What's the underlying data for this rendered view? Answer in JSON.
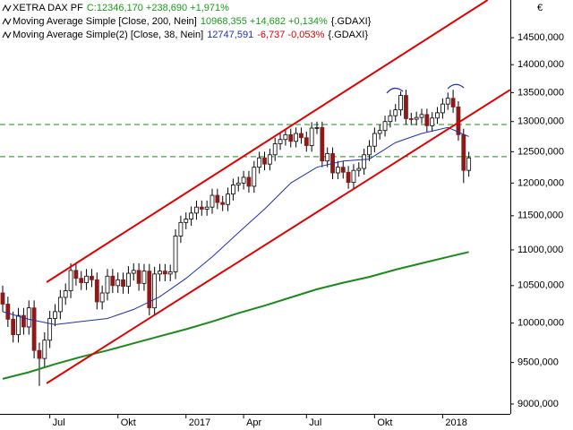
{
  "chart_data": {
    "type": "candlestick",
    "legend": [
      [
        {
          "text": "XETRA DAX PF",
          "color": "#000000"
        },
        {
          "text": "C:12346,170 +238,690 +1,971%",
          "color": "#1a9a1a"
        }
      ],
      [
        {
          "text": "Moving Average Simple [Close, 200, Nein]",
          "color": "#000000"
        },
        {
          "text": "10968,355 +14,682 +0,134%",
          "color": "#1a9a1a"
        },
        {
          "text": "{.GDAXI}",
          "color": "#000000"
        }
      ],
      [
        {
          "text": "Moving Average Simple(2) [Close, 38, Nein]",
          "color": "#000000"
        },
        {
          "text": "12747,591",
          "color": "#1f2fb0"
        },
        {
          "text": "-6,737 -0,053%",
          "color": "#e00000"
        },
        {
          "text": "{.GDAXI}",
          "color": "#000000"
        }
      ]
    ],
    "currency": "€",
    "log_scale": true,
    "ylim": [
      8885,
      15230
    ],
    "yticks": [
      {
        "value": 9000,
        "label": "9000,000"
      },
      {
        "value": 9500,
        "label": "9500,000"
      },
      {
        "value": 10000,
        "label": "10000,000"
      },
      {
        "value": 10500,
        "label": "10500,000"
      },
      {
        "value": 11000,
        "label": "11000,000"
      },
      {
        "value": 11500,
        "label": "11500,000"
      },
      {
        "value": 12000,
        "label": "12000,000"
      },
      {
        "value": 12500,
        "label": "12500,000"
      },
      {
        "value": 13000,
        "label": "13000,000"
      },
      {
        "value": 13500,
        "label": "13500,000"
      },
      {
        "value": 14000,
        "label": "14000,000"
      },
      {
        "value": 14500,
        "label": "14500,000"
      }
    ],
    "categories": [
      null,
      null,
      null,
      null,
      null,
      null,
      null,
      null,
      null,
      "Jul",
      null,
      null,
      null,
      null,
      null,
      null,
      null,
      null,
      null,
      null,
      null,
      null,
      "Okt",
      null,
      null,
      null,
      null,
      null,
      null,
      null,
      null,
      null,
      null,
      null,
      null,
      "2017",
      null,
      null,
      null,
      null,
      null,
      null,
      null,
      null,
      null,
      null,
      "Apr",
      null,
      null,
      null,
      null,
      null,
      null,
      null,
      null,
      null,
      null,
      null,
      "Jul",
      null,
      null,
      null,
      null,
      null,
      null,
      null,
      null,
      null,
      null,
      null,
      null,
      "Okt",
      null,
      null,
      null,
      null,
      null,
      null,
      null,
      null,
      null,
      null,
      null,
      null,
      "2018",
      null,
      null,
      null,
      null,
      null
    ],
    "up_color": "#ffffff",
    "down_color": "#8b1a1a",
    "edge_color": "#000000",
    "open": [
      10400,
      10250,
      10050,
      9850,
      10100,
      9950,
      10200,
      9650,
      9550,
      9780,
      10060,
      10150,
      10340,
      10430,
      10710,
      10600,
      10540,
      10630,
      10580,
      10280,
      10400,
      10630,
      10500,
      10580,
      10490,
      10670,
      10710,
      10530,
      10700,
      10200,
      10660,
      10700,
      10660,
      10690,
      11200,
      11400,
      11450,
      11540,
      11630,
      11600,
      11630,
      11810,
      11700,
      11670,
      11830,
      11970,
      12000,
      12090,
      11950,
      12250,
      12400,
      12300,
      12450,
      12630,
      12700,
      12780,
      12670,
      12800,
      12730,
      12600,
      12890,
      12900,
      12350,
      12470,
      12160,
      12250,
      12170,
      12010,
      12200,
      12230,
      12450,
      12590,
      12800,
      12850,
      13000,
      13100,
      13200,
      13450,
      13050,
      13040,
      13070,
      13120,
      12930,
      13060,
      13150,
      13300,
      13400,
      13250,
      12780,
      12200
    ],
    "high": [
      10500,
      10350,
      10150,
      10200,
      10200,
      10300,
      10300,
      9750,
      9880,
      10160,
      10250,
      10440,
      10530,
      10810,
      10810,
      10700,
      10730,
      10730,
      10680,
      10500,
      10730,
      10730,
      10680,
      10680,
      10770,
      10810,
      10810,
      10800,
      10800,
      10760,
      10800,
      10800,
      10790,
      11300,
      11500,
      11550,
      11640,
      11730,
      11730,
      11730,
      11910,
      11910,
      11800,
      11930,
      12070,
      12100,
      12190,
      12190,
      12350,
      12500,
      12500,
      12550,
      12730,
      12800,
      12880,
      12880,
      12900,
      12900,
      12830,
      12990,
      13000,
      13000,
      12570,
      12570,
      12350,
      12350,
      12270,
      12300,
      12330,
      12550,
      12690,
      12900,
      12950,
      13100,
      13200,
      13300,
      13520,
      13550,
      13150,
      13170,
      13220,
      13220,
      13160,
      13250,
      13400,
      13500,
      13550,
      13350,
      12880,
      12500
    ],
    "low": [
      10150,
      9950,
      9750,
      9750,
      9850,
      9850,
      9550,
      9214,
      9450,
      9680,
      9960,
      10050,
      10240,
      10330,
      10500,
      10440,
      10440,
      10480,
      10180,
      10180,
      10300,
      10400,
      10400,
      10390,
      10390,
      10570,
      10430,
      10430,
      10100,
      10100,
      10560,
      10560,
      10560,
      10590,
      11100,
      11300,
      11350,
      11440,
      11500,
      11500,
      11530,
      11600,
      11570,
      11570,
      11730,
      11870,
      11900,
      11850,
      11850,
      12150,
      12200,
      12200,
      12350,
      12530,
      12600,
      12570,
      12570,
      12630,
      12500,
      12500,
      12790,
      12250,
      12250,
      12060,
      12060,
      12070,
      11910,
      11910,
      12100,
      12130,
      12350,
      12490,
      12700,
      12750,
      12900,
      13000,
      13100,
      12950,
      12940,
      12940,
      12970,
      12830,
      12830,
      12960,
      13050,
      13200,
      13150,
      12680,
      12000,
      12100
    ],
    "close": [
      10250,
      10050,
      9850,
      10100,
      9950,
      10200,
      9650,
      9550,
      9780,
      10060,
      10150,
      10340,
      10430,
      10710,
      10600,
      10540,
      10630,
      10580,
      10280,
      10400,
      10630,
      10500,
      10580,
      10490,
      10670,
      10710,
      10530,
      10700,
      10200,
      10660,
      10700,
      10660,
      10690,
      11200,
      11400,
      11450,
      11540,
      11630,
      11600,
      11630,
      11810,
      11700,
      11670,
      11830,
      11970,
      12000,
      12090,
      11950,
      12250,
      12400,
      12300,
      12450,
      12630,
      12700,
      12780,
      12670,
      12800,
      12730,
      12600,
      12890,
      12900,
      12350,
      12470,
      12160,
      12250,
      12170,
      12010,
      12200,
      12230,
      12450,
      12590,
      12800,
      12850,
      13000,
      13100,
      13200,
      13450,
      13050,
      13040,
      13070,
      13120,
      12930,
      13060,
      13150,
      13300,
      13400,
      13250,
      12780,
      12200,
      12400
    ],
    "series": [
      {
        "color": "#1a8a1a",
        "x": [
          0,
          5,
          10,
          15,
          20,
          25,
          30,
          35,
          40,
          45,
          50,
          55,
          60,
          65,
          70,
          75,
          80,
          85,
          89
        ],
        "values": [
          9300,
          9380,
          9480,
          9570,
          9650,
          9740,
          9830,
          9920,
          10020,
          10130,
          10230,
          10340,
          10450,
          10540,
          10620,
          10720,
          10810,
          10900,
          10970
        ]
      },
      {
        "color": "#1f2fb0",
        "x": [
          0,
          5,
          10,
          15,
          20,
          25,
          30,
          35,
          40,
          45,
          50,
          55,
          60,
          65,
          70,
          75,
          80,
          85,
          89
        ],
        "values": [
          10150,
          10050,
          9980,
          10020,
          10060,
          10180,
          10350,
          10600,
          10900,
          11250,
          11600,
          12000,
          12250,
          12350,
          12380,
          12650,
          12800,
          12900,
          12750
        ]
      }
    ],
    "trendlines": [
      {
        "color": "#e00000",
        "x": [
          8.4,
          92.6
        ],
        "values": [
          10547,
          15230
        ]
      },
      {
        "color": "#e00000",
        "x": [
          8.4,
          96.9
        ],
        "values": [
          9245,
          13550
        ]
      }
    ],
    "hlines": [
      {
        "color": "#1a8a1a",
        "value": 12950
      },
      {
        "color": "#1a8a1a",
        "value": 12420
      }
    ]
  }
}
